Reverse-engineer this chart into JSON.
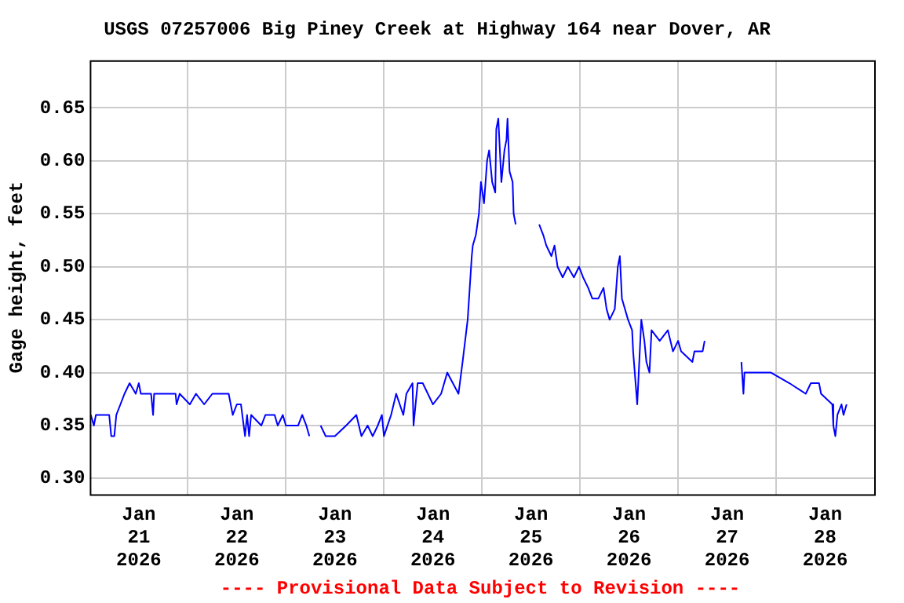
{
  "chart_data": {
    "type": "line",
    "title": "USGS 07257006 Big Piney Creek at Highway 164 near Dover, AR",
    "ylabel": "Gage height, feet",
    "annotations": [
      "---- Provisional Data Subject to Revision ----"
    ],
    "xlim": [
      "2026-01-21T00:00",
      "2026-01-29T00:00"
    ],
    "xticks": [
      {
        "value": "2026-01-21T12:00",
        "label": "Jan 21 2026"
      },
      {
        "value": "2026-01-22T00:00",
        "label": null
      },
      {
        "value": "2026-01-22T12:00",
        "label": "Jan 22 2026"
      },
      {
        "value": "2026-01-23T00:00",
        "label": null
      },
      {
        "value": "2026-01-23T12:00",
        "label": "Jan 23 2026"
      },
      {
        "value": "2026-01-24T00:00",
        "label": null
      },
      {
        "value": "2026-01-24T12:00",
        "label": "Jan 24 2026"
      },
      {
        "value": "2026-01-25T00:00",
        "label": null
      },
      {
        "value": "2026-01-25T12:00",
        "label": "Jan 25 2026"
      },
      {
        "value": "2026-01-26T00:00",
        "label": null
      },
      {
        "value": "2026-01-26T12:00",
        "label": "Jan 26 2026"
      },
      {
        "value": "2026-01-27T00:00",
        "label": null
      },
      {
        "value": "2026-01-27T12:00",
        "label": "Jan 27 2026"
      },
      {
        "value": "2026-01-28T00:00",
        "label": null
      },
      {
        "value": "2026-01-28T12:00",
        "label": "Jan 28 2026"
      }
    ],
    "ylim": [
      0.285,
      0.695
    ],
    "yticks": [
      {
        "value": 0.3,
        "label": "0.30"
      },
      {
        "value": 0.35,
        "label": "0.35"
      },
      {
        "value": 0.4,
        "label": "0.40"
      },
      {
        "value": 0.45,
        "label": "0.45"
      },
      {
        "value": 0.5,
        "label": "0.50"
      },
      {
        "value": 0.55,
        "label": "0.55"
      },
      {
        "value": 0.6,
        "label": "0.60"
      },
      {
        "value": 0.65,
        "label": "0.65"
      }
    ],
    "grid": true,
    "legend": false,
    "marker": "none",
    "line_style": "solid",
    "x": [
      "2026-01-21T00:15",
      "2026-01-21T01:00",
      "2026-01-21T01:30",
      "2026-01-21T04:45",
      "2026-01-21T05:15",
      "2026-01-21T06:00",
      "2026-01-21T06:30",
      "2026-01-21T07:30",
      "2026-01-21T08:30",
      "2026-01-21T09:45",
      "2026-01-21T11:15",
      "2026-01-21T12:00",
      "2026-01-21T12:30",
      "2026-01-21T15:00",
      "2026-01-21T15:30",
      "2026-01-21T15:45",
      "2026-01-21T21:00",
      "2026-01-21T21:15",
      "2026-01-21T22:00",
      "2026-01-22T00:30",
      "2026-01-22T02:00",
      "2026-01-22T04:00",
      "2026-01-22T06:00",
      "2026-01-22T10:00",
      "2026-01-22T11:00",
      "2026-01-22T12:00",
      "2026-01-22T13:00",
      "2026-01-22T14:00",
      "2026-01-22T14:30",
      "2026-01-22T15:00",
      "2026-01-22T15:30",
      "2026-01-22T18:00",
      "2026-01-22T19:00",
      "2026-01-22T21:15",
      "2026-01-22T22:00",
      "2026-01-22T23:15",
      "2026-01-23T00:00",
      "2026-01-23T03:00",
      "2026-01-23T04:00",
      "2026-01-23T05:00",
      "2026-01-23T05:45",
      "2026-01-23T07:00",
      "2026-01-23T08:30",
      "2026-01-23T09:45",
      "2026-01-23T12:00",
      "2026-01-23T14:45",
      "2026-01-23T17:15",
      "2026-01-23T18:30",
      "2026-01-23T20:00",
      "2026-01-23T21:15",
      "2026-01-23T22:30",
      "2026-01-23T23:30",
      "2026-01-24T00:00",
      "2026-01-24T01:45",
      "2026-01-24T03:00",
      "2026-01-24T04:45",
      "2026-01-24T05:30",
      "2026-01-24T07:00",
      "2026-01-24T07:15",
      "2026-01-24T08:15",
      "2026-01-24T09:30",
      "2026-01-24T12:00",
      "2026-01-24T14:00",
      "2026-01-24T15:30",
      "2026-01-24T18:15",
      "2026-01-24T19:15",
      "2026-01-24T20:30",
      "2026-01-24T21:30",
      "2026-01-24T21:45",
      "2026-01-24T22:30",
      "2026-01-24T23:15",
      "2026-01-24T23:45",
      "2026-01-25T00:30",
      "2026-01-25T01:15",
      "2026-01-25T01:45",
      "2026-01-25T02:30",
      "2026-01-25T03:15",
      "2026-01-25T03:30",
      "2026-01-25T04:00",
      "2026-01-25T04:45",
      "2026-01-25T05:30",
      "2026-01-25T06:00",
      "2026-01-25T06:15",
      "2026-01-25T06:45",
      "2026-01-25T07:30",
      "2026-01-25T07:45",
      "2026-01-25T08:15",
      "2026-01-25T10:00",
      "2026-01-25T14:00",
      "2026-01-25T15:00",
      "2026-01-25T15:45",
      "2026-01-25T17:00",
      "2026-01-25T17:45",
      "2026-01-25T18:30",
      "2026-01-25T19:45",
      "2026-01-25T21:00",
      "2026-01-25T22:30",
      "2026-01-25T23:45",
      "2026-01-26T00:45",
      "2026-01-26T02:00",
      "2026-01-26T03:00",
      "2026-01-26T04:30",
      "2026-01-26T05:45",
      "2026-01-26T06:30",
      "2026-01-26T07:15",
      "2026-01-26T08:30",
      "2026-01-26T09:15",
      "2026-01-26T09:45",
      "2026-01-26T10:15",
      "2026-01-26T11:45",
      "2026-01-26T12:45",
      "2026-01-26T13:00",
      "2026-01-26T14:00",
      "2026-01-26T15:00",
      "2026-01-26T15:45",
      "2026-01-26T16:15",
      "2026-01-26T17:00",
      "2026-01-26T17:30",
      "2026-01-26T19:30",
      "2026-01-26T21:30",
      "2026-01-26T22:45",
      "2026-01-27T00:00",
      "2026-01-27T00:45",
      "2026-01-27T03:30",
      "2026-01-27T04:00",
      "2026-01-27T06:00",
      "2026-01-27T06:30",
      "2026-01-27T10:00",
      "2026-01-27T15:30",
      "2026-01-27T16:00",
      "2026-01-27T16:15",
      "2026-01-27T19:30",
      "2026-01-27T22:45",
      "2026-01-28T03:15",
      "2026-01-28T07:15",
      "2026-01-28T08:30",
      "2026-01-28T10:30",
      "2026-01-28T11:00",
      "2026-01-28T13:45",
      "2026-01-28T14:00",
      "2026-01-28T14:30",
      "2026-01-28T15:00",
      "2026-01-28T16:00",
      "2026-01-28T16:30",
      "2026-01-28T17:15"
    ],
    "series": [
      {
        "color": "#0000ff",
        "values": [
          0.36,
          0.35,
          0.36,
          0.36,
          0.34,
          0.34,
          0.36,
          0.37,
          0.38,
          0.39,
          0.38,
          0.39,
          0.38,
          0.38,
          0.36,
          0.38,
          0.38,
          0.37,
          0.38,
          0.37,
          0.38,
          0.37,
          0.38,
          0.38,
          0.36,
          0.37,
          0.37,
          0.34,
          0.36,
          0.34,
          0.36,
          0.35,
          0.36,
          0.36,
          0.35,
          0.36,
          0.35,
          0.35,
          0.36,
          0.35,
          0.34,
          null,
          0.35,
          0.34,
          0.34,
          0.35,
          0.36,
          0.34,
          0.35,
          0.34,
          0.35,
          0.36,
          0.34,
          0.36,
          0.38,
          0.36,
          0.38,
          0.39,
          0.35,
          0.39,
          0.39,
          0.37,
          0.38,
          0.4,
          0.38,
          0.41,
          0.45,
          0.51,
          0.52,
          0.53,
          0.55,
          0.58,
          0.56,
          0.6,
          0.61,
          0.58,
          0.57,
          0.63,
          0.64,
          0.58,
          0.61,
          0.62,
          0.64,
          0.59,
          0.58,
          0.55,
          0.54,
          null,
          0.54,
          0.53,
          0.52,
          0.51,
          0.52,
          0.5,
          0.49,
          0.5,
          0.49,
          0.5,
          0.49,
          0.48,
          0.47,
          0.47,
          0.48,
          0.46,
          0.45,
          0.46,
          0.5,
          0.51,
          0.47,
          0.45,
          0.44,
          0.42,
          0.37,
          0.45,
          0.43,
          0.41,
          0.4,
          0.44,
          0.43,
          0.44,
          0.42,
          0.43,
          0.42,
          0.41,
          0.42,
          0.42,
          0.43,
          null,
          0.41,
          0.38,
          0.4,
          0.4,
          0.4,
          0.39,
          0.38,
          0.39,
          0.39,
          0.38,
          0.37,
          0.35,
          0.34,
          0.36,
          0.37,
          0.36,
          0.37
        ]
      }
    ]
  }
}
